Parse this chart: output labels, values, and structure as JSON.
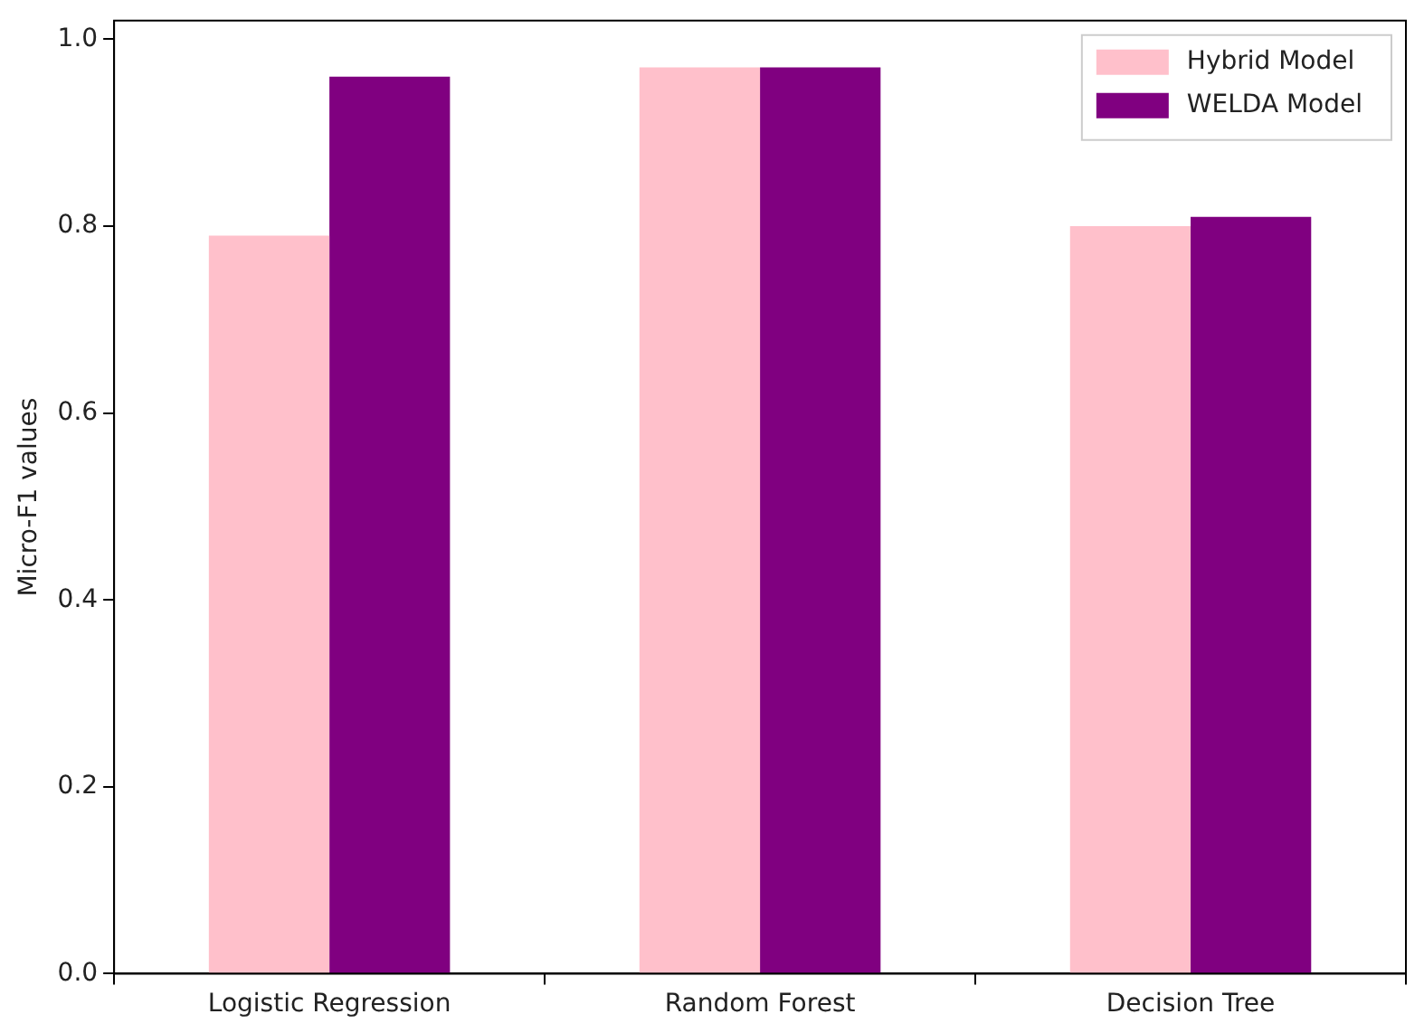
{
  "chart_data": {
    "type": "bar",
    "ylabel": "Micro-F1 values",
    "categories": [
      "Logistic Regression",
      "Random Forest",
      "Decision Tree"
    ],
    "series": [
      {
        "name": "Hybrid Model",
        "color": "#ffc0cb",
        "values": [
          0.79,
          0.97,
          0.8
        ]
      },
      {
        "name": "WELDA Model",
        "color": "#800080",
        "values": [
          0.96,
          0.97,
          0.81
        ]
      }
    ],
    "ylim": [
      0,
      1.02
    ],
    "yticks": [
      {
        "value": 0,
        "label": "0.0"
      },
      0.2,
      0.4,
      0.6,
      0.8,
      {
        "value": 1,
        "label": "1.0"
      }
    ],
    "grid": false,
    "legend": "top right"
  }
}
